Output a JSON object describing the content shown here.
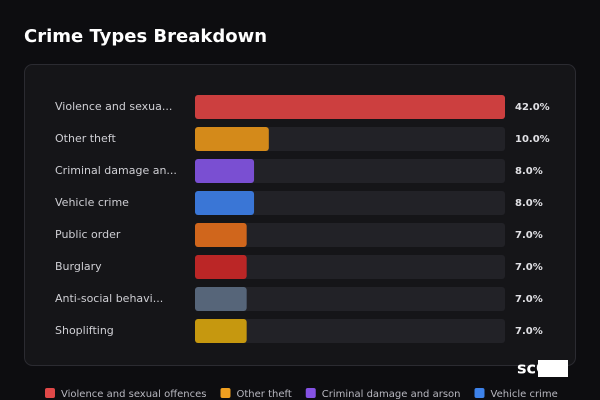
{
  "chart_data": {
    "type": "bar",
    "title": "Crime Types Breakdown",
    "categories": [
      "Violence and sexua...",
      "Other theft",
      "Criminal damage an...",
      "Vehicle crime",
      "Public order",
      "Burglary",
      "Anti-social behavi...",
      "Shoplifting"
    ],
    "values": [
      42,
      10,
      8,
      8,
      7,
      7,
      7,
      7
    ],
    "value_labels": [
      "42.0%",
      "10.0%",
      "8.0%",
      "8.0%",
      "7.0%",
      "7.0%",
      "7.0%",
      "7.0%"
    ],
    "colors": [
      "#cc3f3f",
      "#d48a1a",
      "#7a4fd2",
      "#3a76d6",
      "#d0661c",
      "#bb2626",
      "#566579",
      "#c6980f"
    ],
    "legend": [
      {
        "name": "Violence and sexual offences",
        "color": "#e04848"
      },
      {
        "name": "Other theft",
        "color": "#f0a020"
      },
      {
        "name": "Criminal damage and arson",
        "color": "#8552e4"
      },
      {
        "name": "Vehicle crime",
        "color": "#3d82ea"
      }
    ],
    "watermark": "scOS"
  }
}
